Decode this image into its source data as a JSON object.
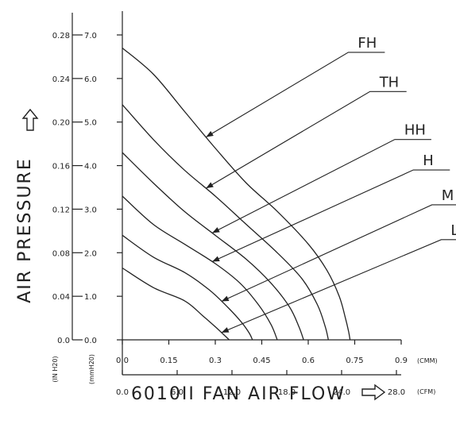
{
  "chart_data": {
    "type": "line",
    "xlabel": "6010II FAN AIR FLOW",
    "ylabel": "AIR PRESSURE",
    "x_primary_unit": "(CMM)",
    "x_secondary_unit": "(CFM)",
    "y_primary_unit": "(mmH20)",
    "y_secondary_unit": "(IN H20)",
    "xlim": [
      0,
      0.9
    ],
    "ylim": [
      0,
      7.0
    ],
    "x_ticks_cmm": [
      "0.0",
      "0.15",
      "0.3",
      "0.45",
      "0.6",
      "0.75",
      "0.9"
    ],
    "x_ticks_cfm": [
      "0.0",
      "6.0",
      "12.0",
      "18.0",
      "24.0",
      "28.0"
    ],
    "y_ticks_mm": [
      "0.0",
      "1.0",
      "2.0",
      "3.0",
      "4.0",
      "5.0",
      "6.0",
      "7.0"
    ],
    "y_ticks_in": [
      "0.0",
      "0.04",
      "0.08",
      "0.12",
      "0.16",
      "0.20",
      "0.24",
      "0.28"
    ],
    "series": [
      {
        "name": "FH",
        "x": [
          0,
          0.1,
          0.2,
          0.3,
          0.4,
          0.5,
          0.6,
          0.66,
          0.7,
          0.72,
          0.73,
          0.735
        ],
        "y": [
          6.7,
          6.1,
          5.25,
          4.4,
          3.6,
          2.95,
          2.2,
          1.6,
          1.0,
          0.5,
          0.2,
          0
        ]
      },
      {
        "name": "TH",
        "x": [
          0,
          0.1,
          0.2,
          0.3,
          0.4,
          0.5,
          0.58,
          0.63,
          0.655,
          0.665
        ],
        "y": [
          5.4,
          4.6,
          3.9,
          3.3,
          2.65,
          2.0,
          1.4,
          0.8,
          0.3,
          0
        ]
      },
      {
        "name": "HH",
        "x": [
          0,
          0.1,
          0.2,
          0.3,
          0.4,
          0.48,
          0.54,
          0.57,
          0.585
        ],
        "y": [
          4.3,
          3.6,
          2.95,
          2.4,
          1.85,
          1.3,
          0.75,
          0.3,
          0
        ]
      },
      {
        "name": "H",
        "x": [
          0,
          0.1,
          0.2,
          0.3,
          0.38,
          0.44,
          0.48,
          0.5
        ],
        "y": [
          3.3,
          2.65,
          2.2,
          1.75,
          1.3,
          0.8,
          0.35,
          0
        ]
      },
      {
        "name": "M",
        "x": [
          0,
          0.1,
          0.2,
          0.28,
          0.34,
          0.385,
          0.41,
          0.42
        ],
        "y": [
          2.4,
          1.9,
          1.55,
          1.15,
          0.75,
          0.4,
          0.15,
          0
        ]
      },
      {
        "name": "L",
        "x": [
          0,
          0.1,
          0.2,
          0.26,
          0.3,
          0.33,
          0.345
        ],
        "y": [
          1.65,
          1.2,
          0.9,
          0.55,
          0.3,
          0.1,
          0
        ]
      }
    ],
    "annotations": [
      {
        "text": "FH",
        "x": 0.76,
        "y": 6.6,
        "series": "FH"
      },
      {
        "text": "TH",
        "x": 0.83,
        "y": 5.7,
        "series": "TH"
      },
      {
        "text": "HH",
        "x": 0.91,
        "y": 4.6,
        "series": "HH"
      },
      {
        "text": "H",
        "x": 0.97,
        "y": 3.9,
        "series": "H"
      },
      {
        "text": "M",
        "x": 1.03,
        "y": 3.1,
        "series": "M"
      },
      {
        "text": "L",
        "x": 1.06,
        "y": 2.3,
        "series": "L"
      }
    ],
    "grid": false,
    "legend": "none"
  }
}
